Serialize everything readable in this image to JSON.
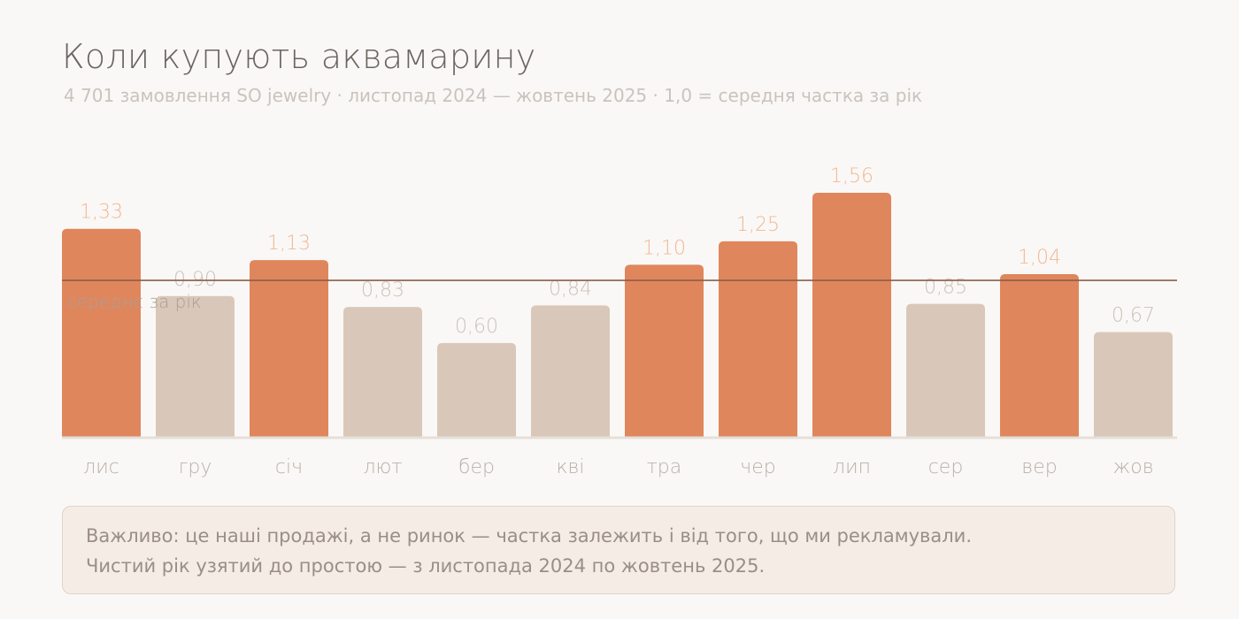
{
  "title": "Коли купують аквамарину",
  "subtitle": "4 701 замовлення SO jewelry · листопад 2024 — жовтень 2025 · 1,0 = середня частка за рік",
  "colors": {
    "above": "#e0865c",
    "below": "#d9c8b9",
    "value_above": "#f0b894",
    "value_below": "#cbc2ba",
    "reference_line": "#8b5e45",
    "axis": "#e6dfd8",
    "category": "#b9b1aa"
  },
  "chart_data": {
    "type": "bar",
    "categories": [
      "лис",
      "гру",
      "січ",
      "лют",
      "бер",
      "кві",
      "тра",
      "чер",
      "лип",
      "сер",
      "вер",
      "жов"
    ],
    "values": [
      1.33,
      0.9,
      1.13,
      0.83,
      0.6,
      0.84,
      1.1,
      1.25,
      1.56,
      0.85,
      1.04,
      0.67
    ],
    "value_labels": [
      "1,33",
      "0,90",
      "1,13",
      "0,83",
      "0,60",
      "0,84",
      "1,10",
      "1,25",
      "1,56",
      "0,85",
      "1,04",
      "0,67"
    ],
    "reference_value": 1.0,
    "reference_label": "середнє за рік",
    "ylim": [
      0,
      1.56
    ],
    "grid": false
  },
  "note": {
    "line1": "Важливо: це наші продажі, а не ринок — частка залежить і від того, що ми рекламували.",
    "line2": "Чистий рік узятий до простою — з листопада 2024 по жовтень 2025."
  }
}
